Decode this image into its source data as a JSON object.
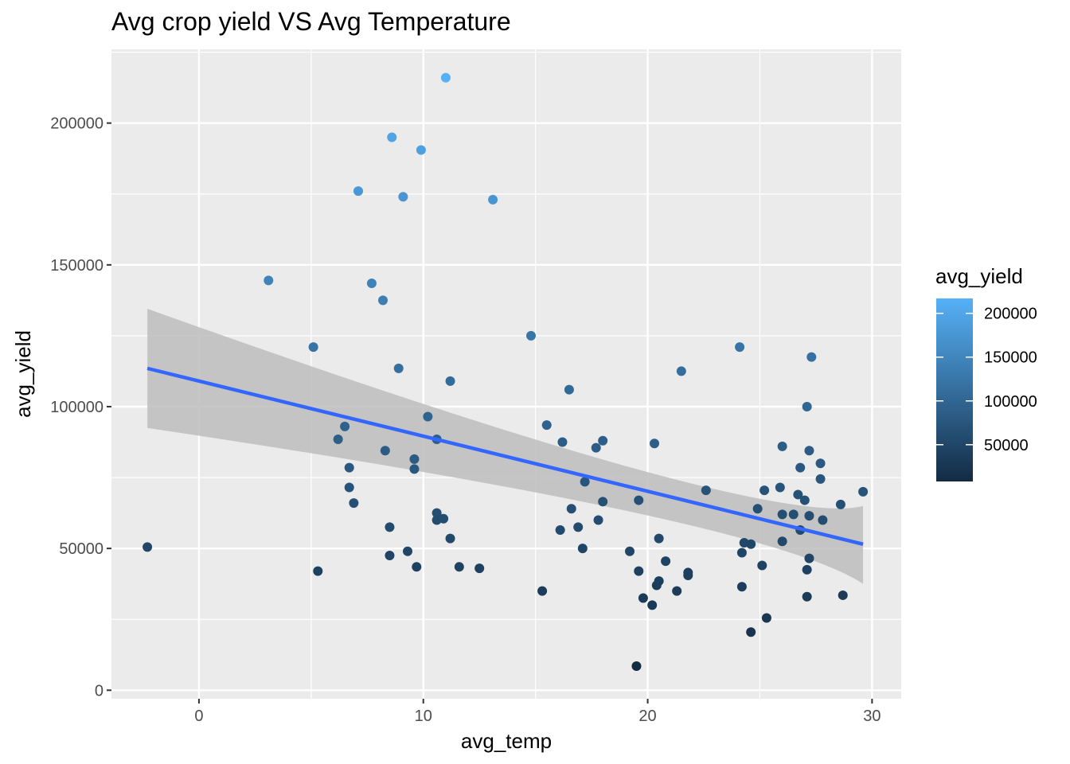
{
  "chart_data": {
    "type": "scatter",
    "title": "Avg crop yield VS Avg Temperature",
    "xlabel": "avg_temp",
    "ylabel": "avg_yield",
    "xlim": [
      -3.9,
      31.3
    ],
    "ylim": [
      -3000,
      226000
    ],
    "xticks": [
      0,
      10,
      20,
      30
    ],
    "yticks": [
      0,
      50000,
      100000,
      150000,
      200000
    ],
    "grid": true,
    "legend": {
      "title": "avg_yield",
      "position": "right",
      "ticks": [
        50000,
        100000,
        150000,
        200000
      ],
      "range": [
        8000,
        217000
      ],
      "low_color": "#132B43",
      "high_color": "#56B1F7"
    },
    "trend_line": {
      "color": "#3366FF",
      "band_color": "#bdbdbd",
      "x": [
        -2.3,
        29.6
      ],
      "y": [
        113500,
        51500
      ],
      "band_upper": [
        134500,
        65000
      ],
      "band_lower": [
        92500,
        37500
      ],
      "band_mid_x": 19.5,
      "band_mid_upper": 78000,
      "band_mid_lower": 62500
    },
    "points": [
      {
        "x": -2.3,
        "y": 50500
      },
      {
        "x": 3.1,
        "y": 144500
      },
      {
        "x": 5.1,
        "y": 121000
      },
      {
        "x": 5.3,
        "y": 42000
      },
      {
        "x": 6.2,
        "y": 88500
      },
      {
        "x": 6.5,
        "y": 93000
      },
      {
        "x": 6.7,
        "y": 78500
      },
      {
        "x": 6.7,
        "y": 71500
      },
      {
        "x": 6.9,
        "y": 66000
      },
      {
        "x": 7.1,
        "y": 176000
      },
      {
        "x": 7.7,
        "y": 143500
      },
      {
        "x": 8.2,
        "y": 137500
      },
      {
        "x": 8.3,
        "y": 84500
      },
      {
        "x": 8.5,
        "y": 57500
      },
      {
        "x": 8.5,
        "y": 47500
      },
      {
        "x": 8.6,
        "y": 195000
      },
      {
        "x": 8.9,
        "y": 113500
      },
      {
        "x": 9.1,
        "y": 174000
      },
      {
        "x": 9.3,
        "y": 49000
      },
      {
        "x": 9.6,
        "y": 81500
      },
      {
        "x": 9.6,
        "y": 78000
      },
      {
        "x": 9.7,
        "y": 43500
      },
      {
        "x": 9.9,
        "y": 190500
      },
      {
        "x": 10.2,
        "y": 96500
      },
      {
        "x": 10.6,
        "y": 88500
      },
      {
        "x": 10.6,
        "y": 62500
      },
      {
        "x": 10.6,
        "y": 60000
      },
      {
        "x": 10.9,
        "y": 60500
      },
      {
        "x": 11.0,
        "y": 216000
      },
      {
        "x": 11.2,
        "y": 109000
      },
      {
        "x": 11.2,
        "y": 53500
      },
      {
        "x": 11.6,
        "y": 43500
      },
      {
        "x": 12.5,
        "y": 43000
      },
      {
        "x": 13.1,
        "y": 173000
      },
      {
        "x": 14.8,
        "y": 125000
      },
      {
        "x": 15.3,
        "y": 35000
      },
      {
        "x": 15.5,
        "y": 93500
      },
      {
        "x": 16.2,
        "y": 87500
      },
      {
        "x": 16.1,
        "y": 56500
      },
      {
        "x": 16.5,
        "y": 106000
      },
      {
        "x": 16.6,
        "y": 64000
      },
      {
        "x": 16.9,
        "y": 57500
      },
      {
        "x": 17.1,
        "y": 50000
      },
      {
        "x": 17.2,
        "y": 73500
      },
      {
        "x": 17.7,
        "y": 85500
      },
      {
        "x": 17.8,
        "y": 60000
      },
      {
        "x": 18.0,
        "y": 88000
      },
      {
        "x": 18.0,
        "y": 66500
      },
      {
        "x": 19.2,
        "y": 49000
      },
      {
        "x": 19.5,
        "y": 8500
      },
      {
        "x": 19.6,
        "y": 67000
      },
      {
        "x": 19.6,
        "y": 42000
      },
      {
        "x": 19.8,
        "y": 32500
      },
      {
        "x": 20.2,
        "y": 30000
      },
      {
        "x": 20.3,
        "y": 87000
      },
      {
        "x": 20.4,
        "y": 37000
      },
      {
        "x": 20.5,
        "y": 53500
      },
      {
        "x": 20.5,
        "y": 38500
      },
      {
        "x": 20.8,
        "y": 45500
      },
      {
        "x": 21.3,
        "y": 35000
      },
      {
        "x": 21.5,
        "y": 112500
      },
      {
        "x": 21.8,
        "y": 41500
      },
      {
        "x": 21.8,
        "y": 40500
      },
      {
        "x": 22.6,
        "y": 70500
      },
      {
        "x": 24.1,
        "y": 121000
      },
      {
        "x": 24.2,
        "y": 48500
      },
      {
        "x": 24.2,
        "y": 36500
      },
      {
        "x": 24.3,
        "y": 52000
      },
      {
        "x": 24.6,
        "y": 51500
      },
      {
        "x": 24.6,
        "y": 20500
      },
      {
        "x": 24.9,
        "y": 64000
      },
      {
        "x": 25.1,
        "y": 44000
      },
      {
        "x": 25.2,
        "y": 70500
      },
      {
        "x": 25.3,
        "y": 25500
      },
      {
        "x": 25.9,
        "y": 71500
      },
      {
        "x": 26.0,
        "y": 86000
      },
      {
        "x": 26.0,
        "y": 62000
      },
      {
        "x": 26.0,
        "y": 52500
      },
      {
        "x": 26.5,
        "y": 62000
      },
      {
        "x": 26.7,
        "y": 69000
      },
      {
        "x": 26.8,
        "y": 78500
      },
      {
        "x": 26.8,
        "y": 56500
      },
      {
        "x": 27.0,
        "y": 67000
      },
      {
        "x": 27.1,
        "y": 100000
      },
      {
        "x": 27.1,
        "y": 42500
      },
      {
        "x": 27.1,
        "y": 33000
      },
      {
        "x": 27.2,
        "y": 84500
      },
      {
        "x": 27.2,
        "y": 61500
      },
      {
        "x": 27.2,
        "y": 46500
      },
      {
        "x": 27.3,
        "y": 117500
      },
      {
        "x": 27.7,
        "y": 80000
      },
      {
        "x": 27.7,
        "y": 74500
      },
      {
        "x": 27.8,
        "y": 60000
      },
      {
        "x": 28.6,
        "y": 65500
      },
      {
        "x": 28.7,
        "y": 33500
      },
      {
        "x": 29.6,
        "y": 70000
      }
    ]
  }
}
